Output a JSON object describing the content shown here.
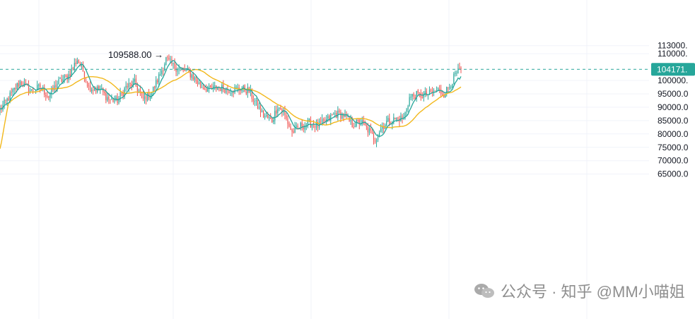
{
  "chart_data": {
    "type": "candlestick",
    "y_axis": {
      "position": "right",
      "ylim": [
        61000,
        113000
      ],
      "ticks": [
        {
          "value": 113000,
          "label": "113000."
        },
        {
          "value": 110000,
          "label": "110000."
        },
        {
          "value": 100000,
          "label": "100000."
        },
        {
          "value": 95000,
          "label": "95000.0"
        },
        {
          "value": 90000,
          "label": "90000.0"
        },
        {
          "value": 85000,
          "label": "85000.0"
        },
        {
          "value": 80000,
          "label": "80000.0"
        },
        {
          "value": 75000,
          "label": "75000.0"
        },
        {
          "value": 70000,
          "label": "70000.0"
        },
        {
          "value": 65000,
          "label": "65000.0"
        }
      ]
    },
    "grid": true,
    "current_price": {
      "value": 104171,
      "label": "104171.",
      "color": "#26a69a"
    },
    "high_annotation": {
      "value": 109588,
      "label": "109588.00 →"
    },
    "colors": {
      "up": "#26a69a",
      "down": "#ef5350",
      "ma_fast": "#26a69a",
      "ma_slow": "#f2b81c",
      "grid": "#f0f3fa"
    },
    "anchors": [
      [
        0,
        89000
      ],
      [
        8,
        95000
      ],
      [
        14,
        99500
      ],
      [
        22,
        96000
      ],
      [
        28,
        97500
      ],
      [
        34,
        94000
      ],
      [
        40,
        99000
      ],
      [
        48,
        102000
      ],
      [
        54,
        107800
      ],
      [
        58,
        103500
      ],
      [
        62,
        97500
      ],
      [
        70,
        96500
      ],
      [
        76,
        93000
      ],
      [
        82,
        92500
      ],
      [
        88,
        97500
      ],
      [
        94,
        99000
      ],
      [
        100,
        93000
      ],
      [
        106,
        95500
      ],
      [
        112,
        102500
      ],
      [
        116,
        108000
      ],
      [
        122,
        105000
      ],
      [
        128,
        104000
      ],
      [
        134,
        102000
      ],
      [
        140,
        98000
      ],
      [
        146,
        96500
      ],
      [
        152,
        97500
      ],
      [
        160,
        96500
      ],
      [
        168,
        97000
      ],
      [
        174,
        96000
      ],
      [
        178,
        92000
      ],
      [
        184,
        87000
      ],
      [
        190,
        85000
      ],
      [
        194,
        90500
      ],
      [
        198,
        88000
      ],
      [
        204,
        80500
      ],
      [
        210,
        83000
      ],
      [
        216,
        84000
      ],
      [
        222,
        83000
      ],
      [
        228,
        85000
      ],
      [
        234,
        87500
      ],
      [
        240,
        87000
      ],
      [
        246,
        83500
      ],
      [
        252,
        84500
      ],
      [
        258,
        81000
      ],
      [
        262,
        78000
      ],
      [
        266,
        82000
      ],
      [
        270,
        84500
      ],
      [
        276,
        85500
      ],
      [
        282,
        86000
      ],
      [
        286,
        93500
      ],
      [
        290,
        94500
      ],
      [
        296,
        94500
      ],
      [
        300,
        95000
      ],
      [
        306,
        96500
      ],
      [
        310,
        95000
      ],
      [
        314,
        98000
      ],
      [
        318,
        102000
      ],
      [
        322,
        104171
      ]
    ]
  },
  "watermark": {
    "text": "公众号 · 知乎 @MM小喵姐"
  }
}
